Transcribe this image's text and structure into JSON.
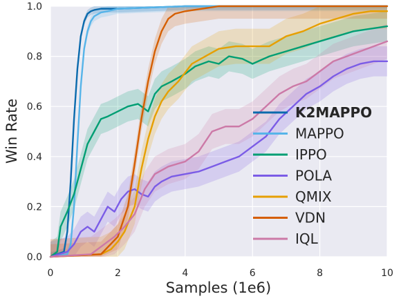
{
  "chart_data": {
    "type": "line",
    "xlabel": "Samples (1e6)",
    "ylabel": "Win Rate",
    "xlim": [
      0,
      10
    ],
    "ylim": [
      0,
      1
    ],
    "xticks": [
      "0",
      "2",
      "4",
      "6",
      "8",
      "10"
    ],
    "yticks": [
      "0.0",
      "0.2",
      "0.4",
      "0.6",
      "0.8",
      "1.0"
    ],
    "grid": true,
    "legend_position": "lower right",
    "series": [
      {
        "name": "K2MAPPO",
        "color": "#0a6aad",
        "bold": true,
        "x": [
          0,
          0.4,
          0.5,
          0.6,
          0.7,
          0.8,
          0.9,
          1.0,
          1.1,
          1.2,
          1.3,
          1.5,
          2,
          3,
          4,
          6,
          8,
          10
        ],
        "y": [
          0,
          0.02,
          0.1,
          0.3,
          0.55,
          0.75,
          0.88,
          0.94,
          0.97,
          0.98,
          0.985,
          0.99,
          0.99,
          0.995,
          1,
          1,
          1,
          1
        ],
        "band": 0.015
      },
      {
        "name": "MAPPO",
        "color": "#56b4e9",
        "x": [
          0,
          0.5,
          0.6,
          0.7,
          0.8,
          0.9,
          1.0,
          1.1,
          1.2,
          1.3,
          1.5,
          1.7,
          2,
          3,
          4,
          6,
          8,
          10
        ],
        "y": [
          0,
          0.01,
          0.05,
          0.2,
          0.45,
          0.68,
          0.83,
          0.9,
          0.94,
          0.96,
          0.975,
          0.98,
          0.99,
          0.995,
          1,
          1,
          1,
          1
        ],
        "band": 0.02
      },
      {
        "name": "IPPO",
        "color": "#009e73",
        "x": [
          0,
          0.2,
          0.3,
          0.5,
          0.7,
          0.9,
          1.1,
          1.3,
          1.5,
          1.7,
          2.0,
          2.3,
          2.6,
          2.9,
          3.1,
          3.3,
          3.6,
          4.0,
          4.3,
          4.7,
          5.0,
          5.3,
          5.7,
          6.0,
          6.5,
          7.0,
          7.5,
          8.0,
          8.5,
          9.0,
          9.5,
          10
        ],
        "y": [
          0,
          0.02,
          0.12,
          0.18,
          0.25,
          0.35,
          0.45,
          0.5,
          0.55,
          0.56,
          0.58,
          0.6,
          0.61,
          0.58,
          0.65,
          0.68,
          0.7,
          0.73,
          0.76,
          0.78,
          0.77,
          0.8,
          0.79,
          0.77,
          0.8,
          0.82,
          0.84,
          0.86,
          0.88,
          0.9,
          0.91,
          0.92
        ],
        "band": 0.06
      },
      {
        "name": "POLA",
        "color": "#7b5ce6",
        "x": [
          0,
          0.5,
          0.7,
          0.9,
          1.1,
          1.3,
          1.5,
          1.7,
          1.9,
          2.1,
          2.3,
          2.5,
          2.7,
          2.9,
          3.1,
          3.3,
          3.6,
          4.0,
          4.4,
          4.8,
          5.2,
          5.6,
          6.0,
          6.4,
          6.8,
          7.2,
          7.6,
          8.0,
          8.4,
          8.8,
          9.2,
          9.6,
          10
        ],
        "y": [
          0,
          0.02,
          0.05,
          0.1,
          0.12,
          0.1,
          0.15,
          0.2,
          0.18,
          0.23,
          0.26,
          0.27,
          0.25,
          0.24,
          0.28,
          0.3,
          0.32,
          0.33,
          0.34,
          0.36,
          0.38,
          0.4,
          0.44,
          0.48,
          0.55,
          0.6,
          0.65,
          0.68,
          0.72,
          0.75,
          0.77,
          0.78,
          0.78
        ],
        "band": 0.06
      },
      {
        "name": "QMIX",
        "color": "#e69f00",
        "x": [
          0,
          1.5,
          1.8,
          2.0,
          2.2,
          2.5,
          2.7,
          2.9,
          3.1,
          3.3,
          3.5,
          3.8,
          4.2,
          4.6,
          5.0,
          5.5,
          6.0,
          6.5,
          7.0,
          7.5,
          8.0,
          8.5,
          9.0,
          9.5,
          10
        ],
        "y": [
          0,
          0.01,
          0.03,
          0.06,
          0.1,
          0.2,
          0.35,
          0.47,
          0.56,
          0.62,
          0.66,
          0.7,
          0.77,
          0.8,
          0.83,
          0.84,
          0.84,
          0.84,
          0.88,
          0.9,
          0.93,
          0.95,
          0.97,
          0.98,
          0.98
        ],
        "band": 0.07
      },
      {
        "name": "VDN",
        "color": "#d55e00",
        "x": [
          0,
          1.5,
          2.0,
          2.3,
          2.5,
          2.7,
          2.9,
          3.1,
          3.3,
          3.5,
          3.7,
          4.0,
          4.5,
          5.0,
          6.0,
          7.0,
          8.0,
          9.0,
          10
        ],
        "y": [
          0,
          0.01,
          0.08,
          0.2,
          0.37,
          0.55,
          0.7,
          0.82,
          0.9,
          0.95,
          0.97,
          0.98,
          0.99,
          1.0,
          1.0,
          1.0,
          1.0,
          1.0,
          1.0
        ],
        "band": 0.05
      },
      {
        "name": "IQL",
        "color": "#cc79a7",
        "x": [
          0,
          1.2,
          1.4,
          1.6,
          1.9,
          2.2,
          2.5,
          2.8,
          3.1,
          3.5,
          4.0,
          4.4,
          4.8,
          5.2,
          5.6,
          6.0,
          6.4,
          6.8,
          7.2,
          7.6,
          8.0,
          8.4,
          8.8,
          9.2,
          9.6,
          10
        ],
        "y": [
          0,
          0.01,
          0.03,
          0.05,
          0.08,
          0.12,
          0.17,
          0.27,
          0.33,
          0.36,
          0.38,
          0.42,
          0.5,
          0.52,
          0.52,
          0.55,
          0.6,
          0.65,
          0.68,
          0.7,
          0.74,
          0.78,
          0.8,
          0.82,
          0.84,
          0.86
        ],
        "band": 0.07
      }
    ]
  }
}
